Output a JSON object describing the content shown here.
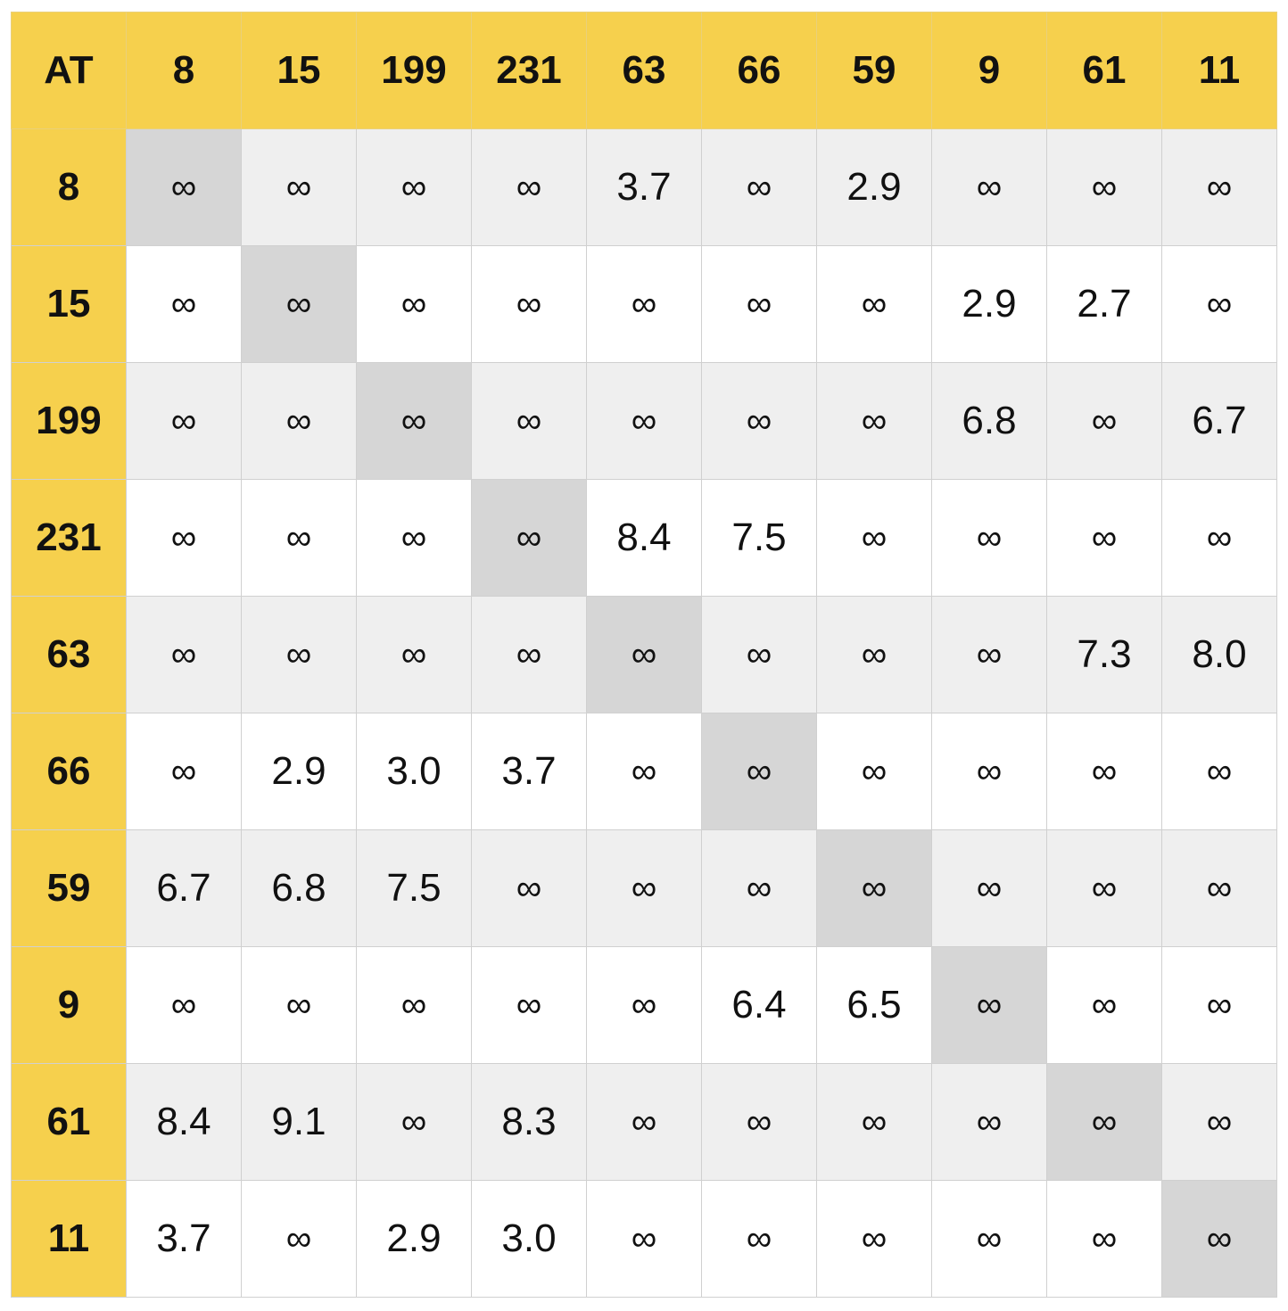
{
  "table": {
    "corner": "AT",
    "columns": [
      "8",
      "15",
      "199",
      "231",
      "63",
      "66",
      "59",
      "9",
      "61",
      "11"
    ],
    "rows": [
      {
        "label": "8",
        "cells": [
          "∞",
          "∞",
          "∞",
          "∞",
          "3.7",
          "∞",
          "2.9",
          "∞",
          "∞",
          "∞"
        ]
      },
      {
        "label": "15",
        "cells": [
          "∞",
          "∞",
          "∞",
          "∞",
          "∞",
          "∞",
          "∞",
          "2.9",
          "2.7",
          "∞"
        ]
      },
      {
        "label": "199",
        "cells": [
          "∞",
          "∞",
          "∞",
          "∞",
          "∞",
          "∞",
          "∞",
          "6.8",
          "∞",
          "6.7"
        ]
      },
      {
        "label": "231",
        "cells": [
          "∞",
          "∞",
          "∞",
          "∞",
          "8.4",
          "7.5",
          "∞",
          "∞",
          "∞",
          "∞"
        ]
      },
      {
        "label": "63",
        "cells": [
          "∞",
          "∞",
          "∞",
          "∞",
          "∞",
          "∞",
          "∞",
          "∞",
          "7.3",
          "8.0"
        ]
      },
      {
        "label": "66",
        "cells": [
          "∞",
          "2.9",
          "3.0",
          "3.7",
          "∞",
          "∞",
          "∞",
          "∞",
          "∞",
          "∞"
        ]
      },
      {
        "label": "59",
        "cells": [
          "6.7",
          "6.8",
          "7.5",
          "∞",
          "∞",
          "∞",
          "∞",
          "∞",
          "∞",
          "∞"
        ]
      },
      {
        "label": "9",
        "cells": [
          "∞",
          "∞",
          "∞",
          "∞",
          "∞",
          "6.4",
          "6.5",
          "∞",
          "∞",
          "∞"
        ]
      },
      {
        "label": "61",
        "cells": [
          "8.4",
          "9.1",
          "∞",
          "8.3",
          "∞",
          "∞",
          "∞",
          "∞",
          "∞",
          "∞"
        ]
      },
      {
        "label": "11",
        "cells": [
          "3.7",
          "∞",
          "2.9",
          "3.0",
          "∞",
          "∞",
          "∞",
          "∞",
          "∞",
          "∞"
        ]
      }
    ]
  },
  "colors": {
    "header_bg": "#f6d04d",
    "row_stripe": "#efefef",
    "diagonal": "#d6d6d6",
    "grid_line": "#d0d0d0"
  }
}
